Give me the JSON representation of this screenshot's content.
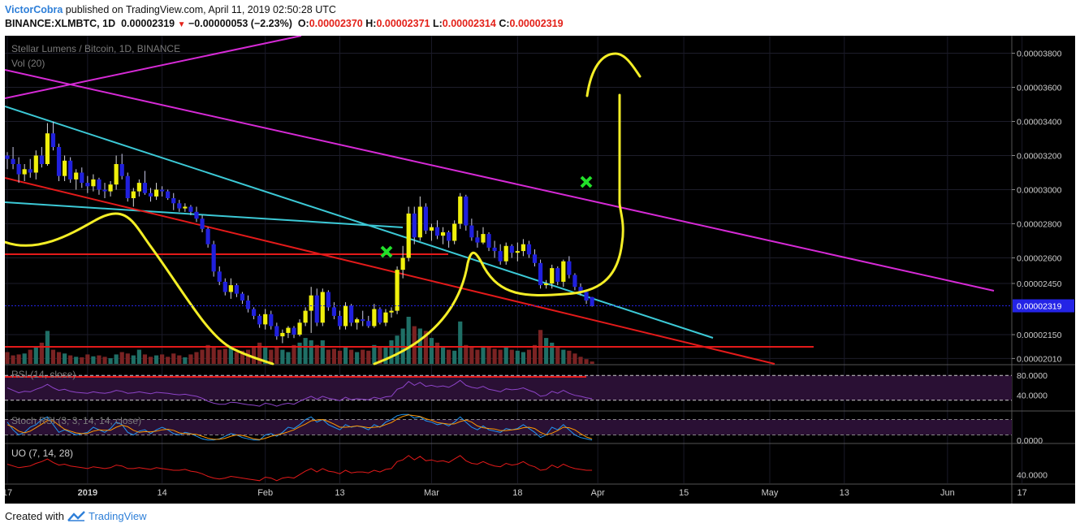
{
  "header": {
    "author": "VictorCobra",
    "published_text": " published on TradingView.com, April 11, 2019 02:50:28 UTC",
    "symbol": "BINANCE:XLMBTC, 1D",
    "price": "0.00002319",
    "change": "−0.00000053 (−2.23%)",
    "o_label": "O:",
    "o": "0.00002370",
    "h_label": "H:",
    "h": "0.00002371",
    "l_label": "L:",
    "l": "0.00002314",
    "c_label": "C:",
    "c": "0.00002319"
  },
  "footer": {
    "created_with": "Created with",
    "brand": "TradingView"
  },
  "colors": {
    "bg": "#000000",
    "up": "#f0f00c",
    "down": "#2020dd",
    "vol_up": "#1f6f66",
    "vol_down": "#7a2323",
    "magenta": "#d62ad6",
    "cyan": "#3cc9d6",
    "red": "#e31a1a",
    "yellow": "#f4ee26",
    "green": "#22e02a",
    "purple": "#8e44c9",
    "price_tag": "#2424e6",
    "axis_text": "#cccccc"
  },
  "chart_data": [
    {
      "type": "candlestick",
      "title": "Stellar Lumens / Bitcoin, 1D, BINANCE",
      "subtitle": "Vol (20)",
      "y_ticks": [
        "0.00003800",
        "0.00003600",
        "0.00003400",
        "0.00003200",
        "0.00003000",
        "0.00002800",
        "0.00002600",
        "0.00002450",
        "0.00002150",
        "0.00002010"
      ],
      "y_tick_values": [
        3800,
        3600,
        3400,
        3200,
        3000,
        2800,
        2600,
        2450,
        2150,
        2010
      ],
      "last_price_label": "0.00002319",
      "last_price": 2319,
      "x_ticks": [
        "17",
        "2019",
        "14",
        "Feb",
        "13",
        "Mar",
        "18",
        "Apr",
        "15",
        "May",
        "13",
        "Jun",
        "17"
      ],
      "x_tick_days": [
        0,
        14,
        27,
        45,
        58,
        74,
        89,
        103,
        118,
        133,
        146,
        164,
        177
      ],
      "series_ohlc": [
        [
          3200,
          3220,
          3120,
          3180
        ],
        [
          3180,
          3250,
          3120,
          3150
        ],
        [
          3150,
          3190,
          3040,
          3090
        ],
        [
          3090,
          3150,
          3050,
          3120
        ],
        [
          3120,
          3180,
          3070,
          3100
        ],
        [
          3100,
          3230,
          3060,
          3200
        ],
        [
          3200,
          3250,
          3130,
          3150
        ],
        [
          3150,
          3390,
          3140,
          3330
        ],
        [
          3330,
          3400,
          3230,
          3250
        ],
        [
          3250,
          3270,
          3050,
          3080
        ],
        [
          3080,
          3200,
          3050,
          3170
        ],
        [
          3170,
          3190,
          3040,
          3060
        ],
        [
          3060,
          3120,
          3000,
          3100
        ],
        [
          3100,
          3130,
          3010,
          3040
        ],
        [
          3040,
          3080,
          2980,
          3020
        ],
        [
          3020,
          3090,
          2990,
          3060
        ],
        [
          3060,
          3070,
          2970,
          3000
        ],
        [
          3000,
          3040,
          2950,
          2990
        ],
        [
          2990,
          3050,
          2960,
          3030
        ],
        [
          3030,
          3200,
          3000,
          3150
        ],
        [
          3150,
          3210,
          3060,
          3080
        ],
        [
          3080,
          3100,
          2930,
          2950
        ],
        [
          2950,
          3010,
          2900,
          2990
        ],
        [
          2990,
          3060,
          2960,
          3040
        ],
        [
          3040,
          3110,
          2970,
          2980
        ],
        [
          2980,
          3010,
          2930,
          2960
        ],
        [
          2960,
          3040,
          2940,
          3000
        ],
        [
          3000,
          3020,
          2960,
          2990
        ],
        [
          2990,
          3000,
          2940,
          2950
        ],
        [
          2950,
          2980,
          2880,
          2920
        ],
        [
          2920,
          2940,
          2870,
          2890
        ],
        [
          2890,
          2920,
          2870,
          2900
        ],
        [
          2900,
          2910,
          2850,
          2870
        ],
        [
          2870,
          2900,
          2810,
          2830
        ],
        [
          2830,
          2850,
          2750,
          2770
        ],
        [
          2770,
          2780,
          2660,
          2680
        ],
        [
          2680,
          2700,
          2490,
          2520
        ],
        [
          2520,
          2550,
          2440,
          2460
        ],
        [
          2460,
          2480,
          2380,
          2400
        ],
        [
          2400,
          2480,
          2360,
          2440
        ],
        [
          2440,
          2450,
          2370,
          2390
        ],
        [
          2390,
          2400,
          2330,
          2350
        ],
        [
          2350,
          2380,
          2280,
          2300
        ],
        [
          2300,
          2310,
          2240,
          2260
        ],
        [
          2260,
          2270,
          2190,
          2210
        ],
        [
          2210,
          2300,
          2180,
          2270
        ],
        [
          2270,
          2290,
          2180,
          2200
        ],
        [
          2200,
          2220,
          2120,
          2140
        ],
        [
          2140,
          2180,
          2100,
          2160
        ],
        [
          2160,
          2200,
          2130,
          2190
        ],
        [
          2190,
          2200,
          2130,
          2150
        ],
        [
          2150,
          2240,
          2140,
          2220
        ],
        [
          2220,
          2310,
          2200,
          2290
        ],
        [
          2290,
          2430,
          2160,
          2380
        ],
        [
          2380,
          2420,
          2200,
          2220
        ],
        [
          2220,
          2420,
          2200,
          2400
        ],
        [
          2400,
          2410,
          2290,
          2310
        ],
        [
          2310,
          2340,
          2240,
          2260
        ],
        [
          2260,
          2290,
          2180,
          2200
        ],
        [
          2200,
          2340,
          2180,
          2320
        ],
        [
          2320,
          2330,
          2200,
          2220
        ],
        [
          2220,
          2250,
          2180,
          2240
        ],
        [
          2240,
          2290,
          2200,
          2230
        ],
        [
          2230,
          2260,
          2190,
          2200
        ],
        [
          2200,
          2330,
          2190,
          2300
        ],
        [
          2300,
          2310,
          2210,
          2220
        ],
        [
          2220,
          2300,
          2200,
          2280
        ],
        [
          2280,
          2310,
          2250,
          2290
        ],
        [
          2290,
          2550,
          2270,
          2530
        ],
        [
          2530,
          2670,
          2480,
          2600
        ],
        [
          2600,
          2900,
          2580,
          2860
        ],
        [
          2860,
          2900,
          2680,
          2720
        ],
        [
          2720,
          2960,
          2700,
          2900
        ],
        [
          2900,
          2920,
          2740,
          2760
        ],
        [
          2760,
          2800,
          2700,
          2780
        ],
        [
          2780,
          2820,
          2710,
          2730
        ],
        [
          2730,
          2780,
          2680,
          2750
        ],
        [
          2750,
          2760,
          2660,
          2700
        ],
        [
          2700,
          2820,
          2680,
          2800
        ],
        [
          2800,
          2980,
          2770,
          2960
        ],
        [
          2960,
          2970,
          2760,
          2790
        ],
        [
          2790,
          2830,
          2700,
          2720
        ],
        [
          2720,
          2760,
          2660,
          2690
        ],
        [
          2690,
          2780,
          2680,
          2740
        ],
        [
          2740,
          2750,
          2640,
          2660
        ],
        [
          2660,
          2700,
          2600,
          2640
        ],
        [
          2640,
          2680,
          2560,
          2580
        ],
        [
          2580,
          2690,
          2560,
          2670
        ],
        [
          2670,
          2680,
          2600,
          2630
        ],
        [
          2630,
          2690,
          2580,
          2640
        ],
        [
          2640,
          2710,
          2610,
          2680
        ],
        [
          2680,
          2700,
          2600,
          2620
        ],
        [
          2620,
          2650,
          2550,
          2570
        ],
        [
          2570,
          2590,
          2420,
          2440
        ],
        [
          2440,
          2470,
          2420,
          2450
        ],
        [
          2450,
          2560,
          2420,
          2540
        ],
        [
          2540,
          2550,
          2440,
          2460
        ],
        [
          2460,
          2590,
          2430,
          2580
        ],
        [
          2580,
          2610,
          2480,
          2500
        ],
        [
          2500,
          2510,
          2410,
          2430
        ],
        [
          2430,
          2450,
          2380,
          2400
        ],
        [
          2400,
          2410,
          2330,
          2350
        ],
        [
          2370,
          2371,
          2314,
          2319
        ]
      ],
      "volume_pct": [
        0.25,
        0.18,
        0.2,
        0.22,
        0.3,
        0.35,
        0.45,
        0.7,
        0.3,
        0.25,
        0.22,
        0.18,
        0.15,
        0.14,
        0.2,
        0.16,
        0.18,
        0.15,
        0.12,
        0.2,
        0.25,
        0.22,
        0.18,
        0.3,
        0.2,
        0.15,
        0.18,
        0.2,
        0.15,
        0.22,
        0.18,
        0.14,
        0.2,
        0.25,
        0.3,
        0.4,
        0.35,
        0.3,
        0.32,
        0.38,
        0.25,
        0.28,
        0.3,
        0.35,
        0.45,
        0.35,
        0.3,
        0.38,
        0.3,
        0.25,
        0.4,
        0.45,
        0.55,
        0.5,
        0.4,
        0.5,
        0.3,
        0.32,
        0.28,
        0.35,
        0.3,
        0.25,
        0.3,
        0.28,
        0.4,
        0.35,
        0.38,
        0.5,
        0.6,
        0.75,
        1.0,
        0.8,
        0.75,
        0.7,
        0.55,
        0.45,
        0.35,
        0.3,
        0.28,
        0.9,
        0.4,
        0.35,
        0.3,
        0.38,
        0.35,
        0.32,
        0.3,
        0.35,
        0.3,
        0.28,
        0.25,
        0.3,
        0.4,
        0.72,
        0.55,
        0.45,
        0.35,
        0.3,
        0.28,
        0.22,
        0.15,
        0.1,
        0.05
      ]
    },
    {
      "type": "line",
      "title": "RSI (14, close)",
      "y_ticks": [
        "80.0000",
        "40.0000"
      ],
      "y_tick_values": [
        80,
        40
      ],
      "ylim": [
        10,
        100
      ],
      "values": [
        55,
        50,
        45,
        48,
        47,
        52,
        56,
        62,
        55,
        50,
        52,
        48,
        46,
        45,
        44,
        47,
        45,
        44,
        46,
        50,
        48,
        44,
        45,
        47,
        45,
        43,
        46,
        45,
        44,
        42,
        41,
        42,
        40,
        38,
        34,
        28,
        24,
        22,
        22,
        26,
        25,
        23,
        21,
        20,
        18,
        24,
        22,
        18,
        22,
        24,
        22,
        28,
        33,
        38,
        32,
        38,
        34,
        32,
        29,
        36,
        31,
        33,
        32,
        31,
        36,
        33,
        37,
        38,
        52,
        56,
        68,
        60,
        66,
        58,
        60,
        57,
        59,
        56,
        62,
        70,
        60,
        56,
        54,
        58,
        52,
        50,
        47,
        53,
        51,
        52,
        55,
        50,
        46,
        38,
        40,
        48,
        44,
        50,
        44,
        40,
        38,
        35,
        33
      ]
    },
    {
      "type": "line",
      "title": "Stoch RSI (3, 3, 14, 14, close)",
      "y_ticks": [
        "0.0000"
      ],
      "y_tick_values": [
        0
      ],
      "ylim": [
        -10,
        110
      ],
      "k": [
        70,
        40,
        20,
        30,
        50,
        60,
        80,
        90,
        60,
        30,
        40,
        30,
        20,
        25,
        30,
        50,
        40,
        30,
        45,
        70,
        60,
        30,
        20,
        35,
        40,
        25,
        40,
        50,
        40,
        25,
        20,
        30,
        25,
        15,
        5,
        0,
        0,
        5,
        15,
        25,
        20,
        10,
        5,
        0,
        0,
        20,
        25,
        15,
        30,
        50,
        45,
        60,
        80,
        90,
        70,
        80,
        60,
        50,
        40,
        60,
        50,
        55,
        50,
        40,
        60,
        50,
        70,
        80,
        95,
        100,
        100,
        85,
        90,
        75,
        70,
        60,
        65,
        55,
        70,
        90,
        70,
        50,
        40,
        55,
        40,
        35,
        30,
        45,
        40,
        45,
        60,
        45,
        30,
        10,
        20,
        50,
        40,
        60,
        40,
        20,
        10,
        5,
        0
      ],
      "d": [
        60,
        50,
        35,
        28,
        35,
        48,
        62,
        76,
        75,
        58,
        42,
        35,
        28,
        25,
        26,
        35,
        40,
        38,
        38,
        50,
        58,
        52,
        38,
        30,
        33,
        32,
        35,
        40,
        42,
        38,
        28,
        25,
        24,
        22,
        15,
        7,
        3,
        3,
        7,
        15,
        20,
        18,
        12,
        5,
        2,
        7,
        15,
        20,
        25,
        32,
        40,
        52,
        62,
        75,
        78,
        80,
        72,
        62,
        50,
        50,
        52,
        55,
        52,
        48,
        50,
        52,
        60,
        68,
        82,
        92,
        98,
        95,
        92,
        83,
        77,
        68,
        65,
        62,
        63,
        72,
        78,
        70,
        55,
        48,
        45,
        43,
        37,
        37,
        40,
        42,
        48,
        50,
        45,
        30,
        20,
        27,
        37,
        50,
        48,
        40,
        25,
        12,
        5
      ]
    },
    {
      "type": "line",
      "title": "UO (7, 14, 28)",
      "y_ticks": [
        "40.0000"
      ],
      "y_tick_values": [
        40
      ],
      "ylim": [
        30,
        75
      ],
      "values": [
        52,
        50,
        48,
        49,
        50,
        53,
        55,
        58,
        54,
        51,
        52,
        50,
        49,
        48,
        47,
        49,
        48,
        47,
        48,
        51,
        50,
        47,
        47,
        48,
        47,
        46,
        48,
        47,
        46,
        45,
        45,
        46,
        44,
        43,
        41,
        38,
        36,
        35,
        36,
        38,
        37,
        36,
        35,
        34,
        33,
        37,
        36,
        33,
        36,
        37,
        36,
        40,
        44,
        47,
        43,
        47,
        44,
        43,
        41,
        45,
        42,
        43,
        43,
        42,
        45,
        43,
        46,
        47,
        55,
        57,
        62,
        57,
        61,
        56,
        57,
        55,
        56,
        54,
        58,
        62,
        56,
        53,
        52,
        55,
        52,
        50,
        49,
        53,
        51,
        52,
        55,
        51,
        49,
        45,
        46,
        51,
        48,
        52,
        49,
        47,
        46,
        45,
        45
      ]
    }
  ]
}
